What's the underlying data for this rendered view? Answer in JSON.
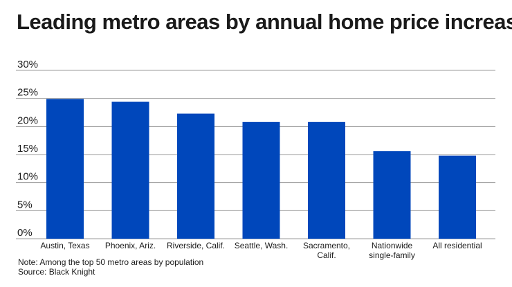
{
  "title": "Leading metro areas by annual home price increase",
  "notes": {
    "note": "Note: Among the top 50 metro areas by population",
    "source": "Source: Black Knight"
  },
  "colors": {
    "bar": "#0047bb",
    "grid": "#999999"
  },
  "chart_data": {
    "type": "bar",
    "title": "Leading metro areas by annual home price increase",
    "xlabel": "",
    "ylabel": "",
    "categories": [
      [
        "Austin, Texas"
      ],
      [
        "Phoenix, Ariz."
      ],
      [
        "Riverside, Calif."
      ],
      [
        "Seattle, Wash."
      ],
      [
        "Sacramento,",
        "Calif."
      ],
      [
        "Nationwide",
        "single-family"
      ],
      [
        "All residential"
      ]
    ],
    "values": [
      24.9,
      24.4,
      22.3,
      20.8,
      20.8,
      15.6,
      14.8
    ],
    "ylim": [
      0,
      30
    ],
    "yticks": [
      0,
      5,
      10,
      15,
      20,
      25,
      30
    ],
    "ytick_labels": [
      "0%",
      "5%",
      "10%",
      "15%",
      "20%",
      "25%",
      "30%"
    ],
    "grid": true,
    "legend": "none"
  }
}
